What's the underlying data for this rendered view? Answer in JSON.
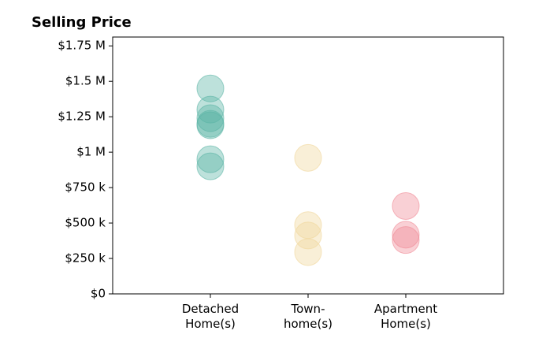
{
  "chart_data": {
    "type": "strip",
    "title": "Selling Price",
    "categories": [
      "Detached\nHome(s)",
      "Town-\nhome(s)",
      "Apartment\nHome(s)"
    ],
    "values": [
      [
        1450000,
        1300000,
        1240000,
        1200000,
        1190000,
        950000,
        900000
      ],
      [
        960000,
        485000,
        412000,
        295000
      ],
      [
        620000,
        418000,
        380000
      ]
    ],
    "colors": [
      "#5ab4a5",
      "#f0d69a",
      "#f08a96"
    ],
    "ylim": [
      0,
      1812500
    ],
    "yticks": [
      {
        "value": 0,
        "label": "$0"
      },
      {
        "value": 250000,
        "label": "$250 k"
      },
      {
        "value": 500000,
        "label": "$500 k"
      },
      {
        "value": 750000,
        "label": "$750 k"
      },
      {
        "value": 1000000,
        "label": "$1 M"
      },
      {
        "value": 1250000,
        "label": "$1.25 M"
      },
      {
        "value": 1500000,
        "label": "$1.5 M"
      },
      {
        "value": 1750000,
        "label": "$1.75 M"
      }
    ]
  }
}
